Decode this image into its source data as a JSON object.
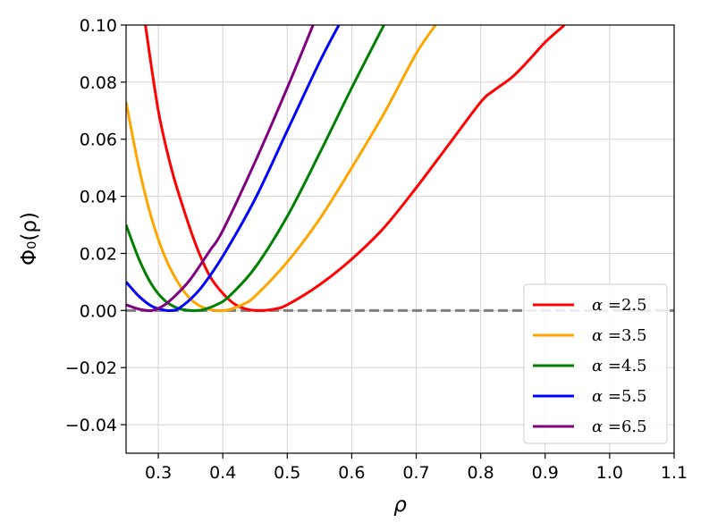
{
  "chart_data": {
    "type": "line",
    "xlabel": "ρ",
    "ylabel": "Φ₀(ρ)",
    "xlim": [
      0.25,
      1.1
    ],
    "ylim": [
      -0.05,
      0.1
    ],
    "xticks": [
      0.3,
      0.4,
      0.5,
      0.6,
      0.7,
      0.8,
      0.9,
      1.0,
      1.1
    ],
    "xtick_labels": [
      "0.3",
      "0.4",
      "0.5",
      "0.6",
      "0.7",
      "0.8",
      "0.9",
      "1.0",
      "1.1"
    ],
    "yticks": [
      -0.04,
      -0.02,
      0.0,
      0.02,
      0.04,
      0.06,
      0.08,
      0.1
    ],
    "ytick_labels": [
      "−0.04",
      "−0.02",
      "0.00",
      "0.02",
      "0.04",
      "0.06",
      "0.08",
      "0.10"
    ],
    "grid": true,
    "legend_position": "lower-right",
    "reference_line": {
      "y": 0.0,
      "style": "dashed",
      "color": "#808080"
    },
    "series": [
      {
        "name": "α =2.5",
        "legend_symbol": "α",
        "legend_value": "=2.5",
        "color": "#ff0000",
        "x": [
          0.28,
          0.3,
          0.32,
          0.34,
          0.36,
          0.38,
          0.4,
          0.42,
          0.44,
          0.46,
          0.48,
          0.5,
          0.55,
          0.6,
          0.65,
          0.7,
          0.75,
          0.8,
          0.82,
          0.85,
          0.88,
          0.9,
          0.93
        ],
        "y": [
          0.1,
          0.07,
          0.05,
          0.035,
          0.022,
          0.012,
          0.006,
          0.002,
          0.0003,
          0.0,
          0.0005,
          0.002,
          0.009,
          0.018,
          0.029,
          0.043,
          0.058,
          0.073,
          0.077,
          0.082,
          0.089,
          0.094,
          0.1
        ]
      },
      {
        "name": "α =3.5",
        "legend_symbol": "α",
        "legend_value": "=3.5",
        "color": "#ffa500",
        "x": [
          0.25,
          0.27,
          0.29,
          0.31,
          0.33,
          0.35,
          0.37,
          0.39,
          0.4,
          0.41,
          0.43,
          0.45,
          0.5,
          0.55,
          0.6,
          0.65,
          0.7,
          0.73
        ],
        "y": [
          0.073,
          0.05,
          0.032,
          0.019,
          0.01,
          0.004,
          0.001,
          0.0,
          0.0,
          0.0003,
          0.002,
          0.005,
          0.017,
          0.032,
          0.05,
          0.069,
          0.09,
          0.1
        ]
      },
      {
        "name": "α =4.5",
        "legend_symbol": "α",
        "legend_value": "=4.5",
        "color": "#008000",
        "x": [
          0.25,
          0.27,
          0.29,
          0.31,
          0.33,
          0.35,
          0.36,
          0.37,
          0.39,
          0.41,
          0.45,
          0.5,
          0.55,
          0.6,
          0.65
        ],
        "y": [
          0.03,
          0.018,
          0.009,
          0.0035,
          0.0008,
          0.0,
          0.0,
          0.0003,
          0.002,
          0.005,
          0.015,
          0.033,
          0.055,
          0.078,
          0.1
        ]
      },
      {
        "name": "α =5.5",
        "legend_symbol": "α",
        "legend_value": "=5.5",
        "color": "#0000ff",
        "x": [
          0.25,
          0.27,
          0.29,
          0.31,
          0.32,
          0.33,
          0.35,
          0.37,
          0.4,
          0.45,
          0.5,
          0.55,
          0.58
        ],
        "y": [
          0.01,
          0.005,
          0.0015,
          0.0001,
          0.0,
          0.0005,
          0.004,
          0.009,
          0.019,
          0.039,
          0.063,
          0.087,
          0.1
        ]
      },
      {
        "name": "α =6.5",
        "legend_symbol": "α",
        "legend_value": "=6.5",
        "color": "#800080",
        "x": [
          0.25,
          0.27,
          0.29,
          0.31,
          0.33,
          0.35,
          0.38,
          0.4,
          0.45,
          0.5,
          0.54
        ],
        "y": [
          0.002,
          0.0005,
          0.0,
          0.002,
          0.006,
          0.011,
          0.021,
          0.028,
          0.052,
          0.078,
          0.1
        ]
      }
    ]
  }
}
